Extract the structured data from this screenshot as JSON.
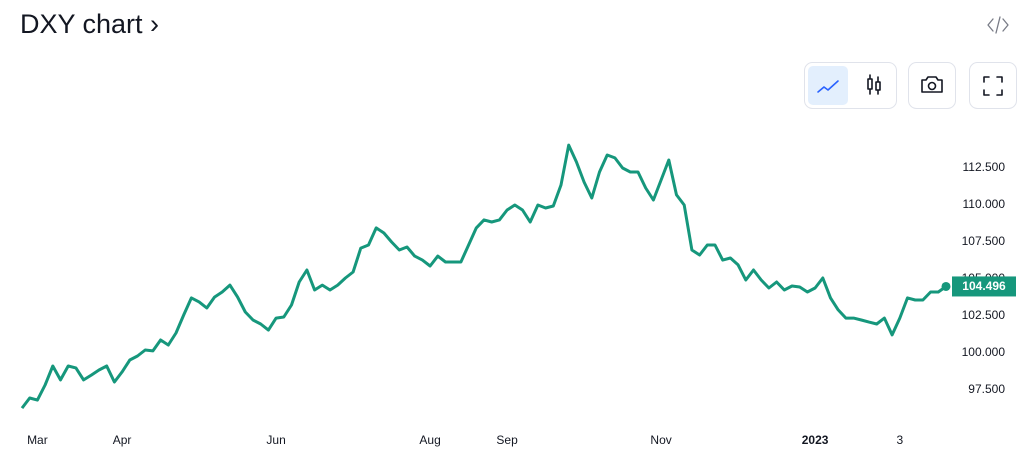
{
  "chart_data": {
    "type": "line",
    "title": "DXY chart ›",
    "color": "#16977c",
    "categories": [
      null,
      null,
      "Mar",
      null,
      null,
      null,
      null,
      null,
      null,
      null,
      null,
      null,
      null,
      "Apr",
      null,
      null,
      null,
      null,
      null,
      null,
      null,
      null,
      null,
      null,
      null,
      null,
      null,
      null,
      null,
      null,
      null,
      null,
      null,
      "Jun",
      null,
      null,
      null,
      null,
      null,
      null,
      null,
      null,
      null,
      null,
      null,
      null,
      null,
      null,
      null,
      null,
      null,
      null,
      null,
      "Aug",
      null,
      null,
      null,
      null,
      null,
      null,
      null,
      null,
      null,
      "Sep",
      null,
      null,
      null,
      null,
      null,
      null,
      null,
      null,
      null,
      null,
      null,
      null,
      null,
      null,
      null,
      null,
      null,
      null,
      null,
      "Nov",
      null,
      null,
      null,
      null,
      null,
      null,
      null,
      null,
      null,
      null,
      null,
      null,
      null,
      null,
      null,
      null,
      null,
      null,
      null,
      "2023",
      null,
      null,
      null,
      null,
      null,
      null,
      null,
      null,
      null,
      null,
      "3",
      null,
      null,
      null,
      null,
      null,
      null
    ],
    "values": [
      96.28,
      96.96,
      96.82,
      97.84,
      99.12,
      98.18,
      99.12,
      98.99,
      98.18,
      98.51,
      98.85,
      99.12,
      98.04,
      98.72,
      99.53,
      99.8,
      100.2,
      100.14,
      100.88,
      100.54,
      101.35,
      102.57,
      103.72,
      103.45,
      103.04,
      103.78,
      104.12,
      104.59,
      103.78,
      102.77,
      102.23,
      101.96,
      101.55,
      102.36,
      102.43,
      103.24,
      104.8,
      105.61,
      104.26,
      104.59,
      104.26,
      104.59,
      105.07,
      105.47,
      107.09,
      107.3,
      108.45,
      108.11,
      107.5,
      106.96,
      107.16,
      106.55,
      106.28,
      105.88,
      106.55,
      106.15,
      106.15,
      106.15,
      107.3,
      108.45,
      108.99,
      108.85,
      108.99,
      109.66,
      110.0,
      109.66,
      108.85,
      110.0,
      109.8,
      109.93,
      111.35,
      114.05,
      112.91,
      111.55,
      110.47,
      112.23,
      113.38,
      113.18,
      112.5,
      112.23,
      112.23,
      111.15,
      110.34,
      111.69,
      113.04,
      110.68,
      110.0,
      106.96,
      106.62,
      107.3,
      107.3,
      106.28,
      106.42,
      105.95,
      104.93,
      105.61,
      104.93,
      104.39,
      104.8,
      104.26,
      104.53,
      104.46,
      104.12,
      104.39,
      105.07,
      103.72,
      102.91,
      102.36,
      102.36,
      102.23,
      102.09,
      101.96,
      102.36,
      101.22,
      102.36,
      103.72,
      103.58,
      103.58,
      104.12,
      104.12,
      104.496
    ],
    "ylim": [
      95.5,
      115
    ],
    "yticks": [
      {
        "value": 97.5,
        "label": "97.500"
      },
      {
        "value": 100,
        "label": "100.000"
      },
      {
        "value": 102.5,
        "label": "102.500"
      },
      {
        "value": 105,
        "label": "105.000"
      },
      {
        "value": 107.5,
        "label": "107.500"
      },
      {
        "value": 110,
        "label": "110.000"
      },
      {
        "value": 112.5,
        "label": "112.500"
      }
    ],
    "grid": false
  }
}
